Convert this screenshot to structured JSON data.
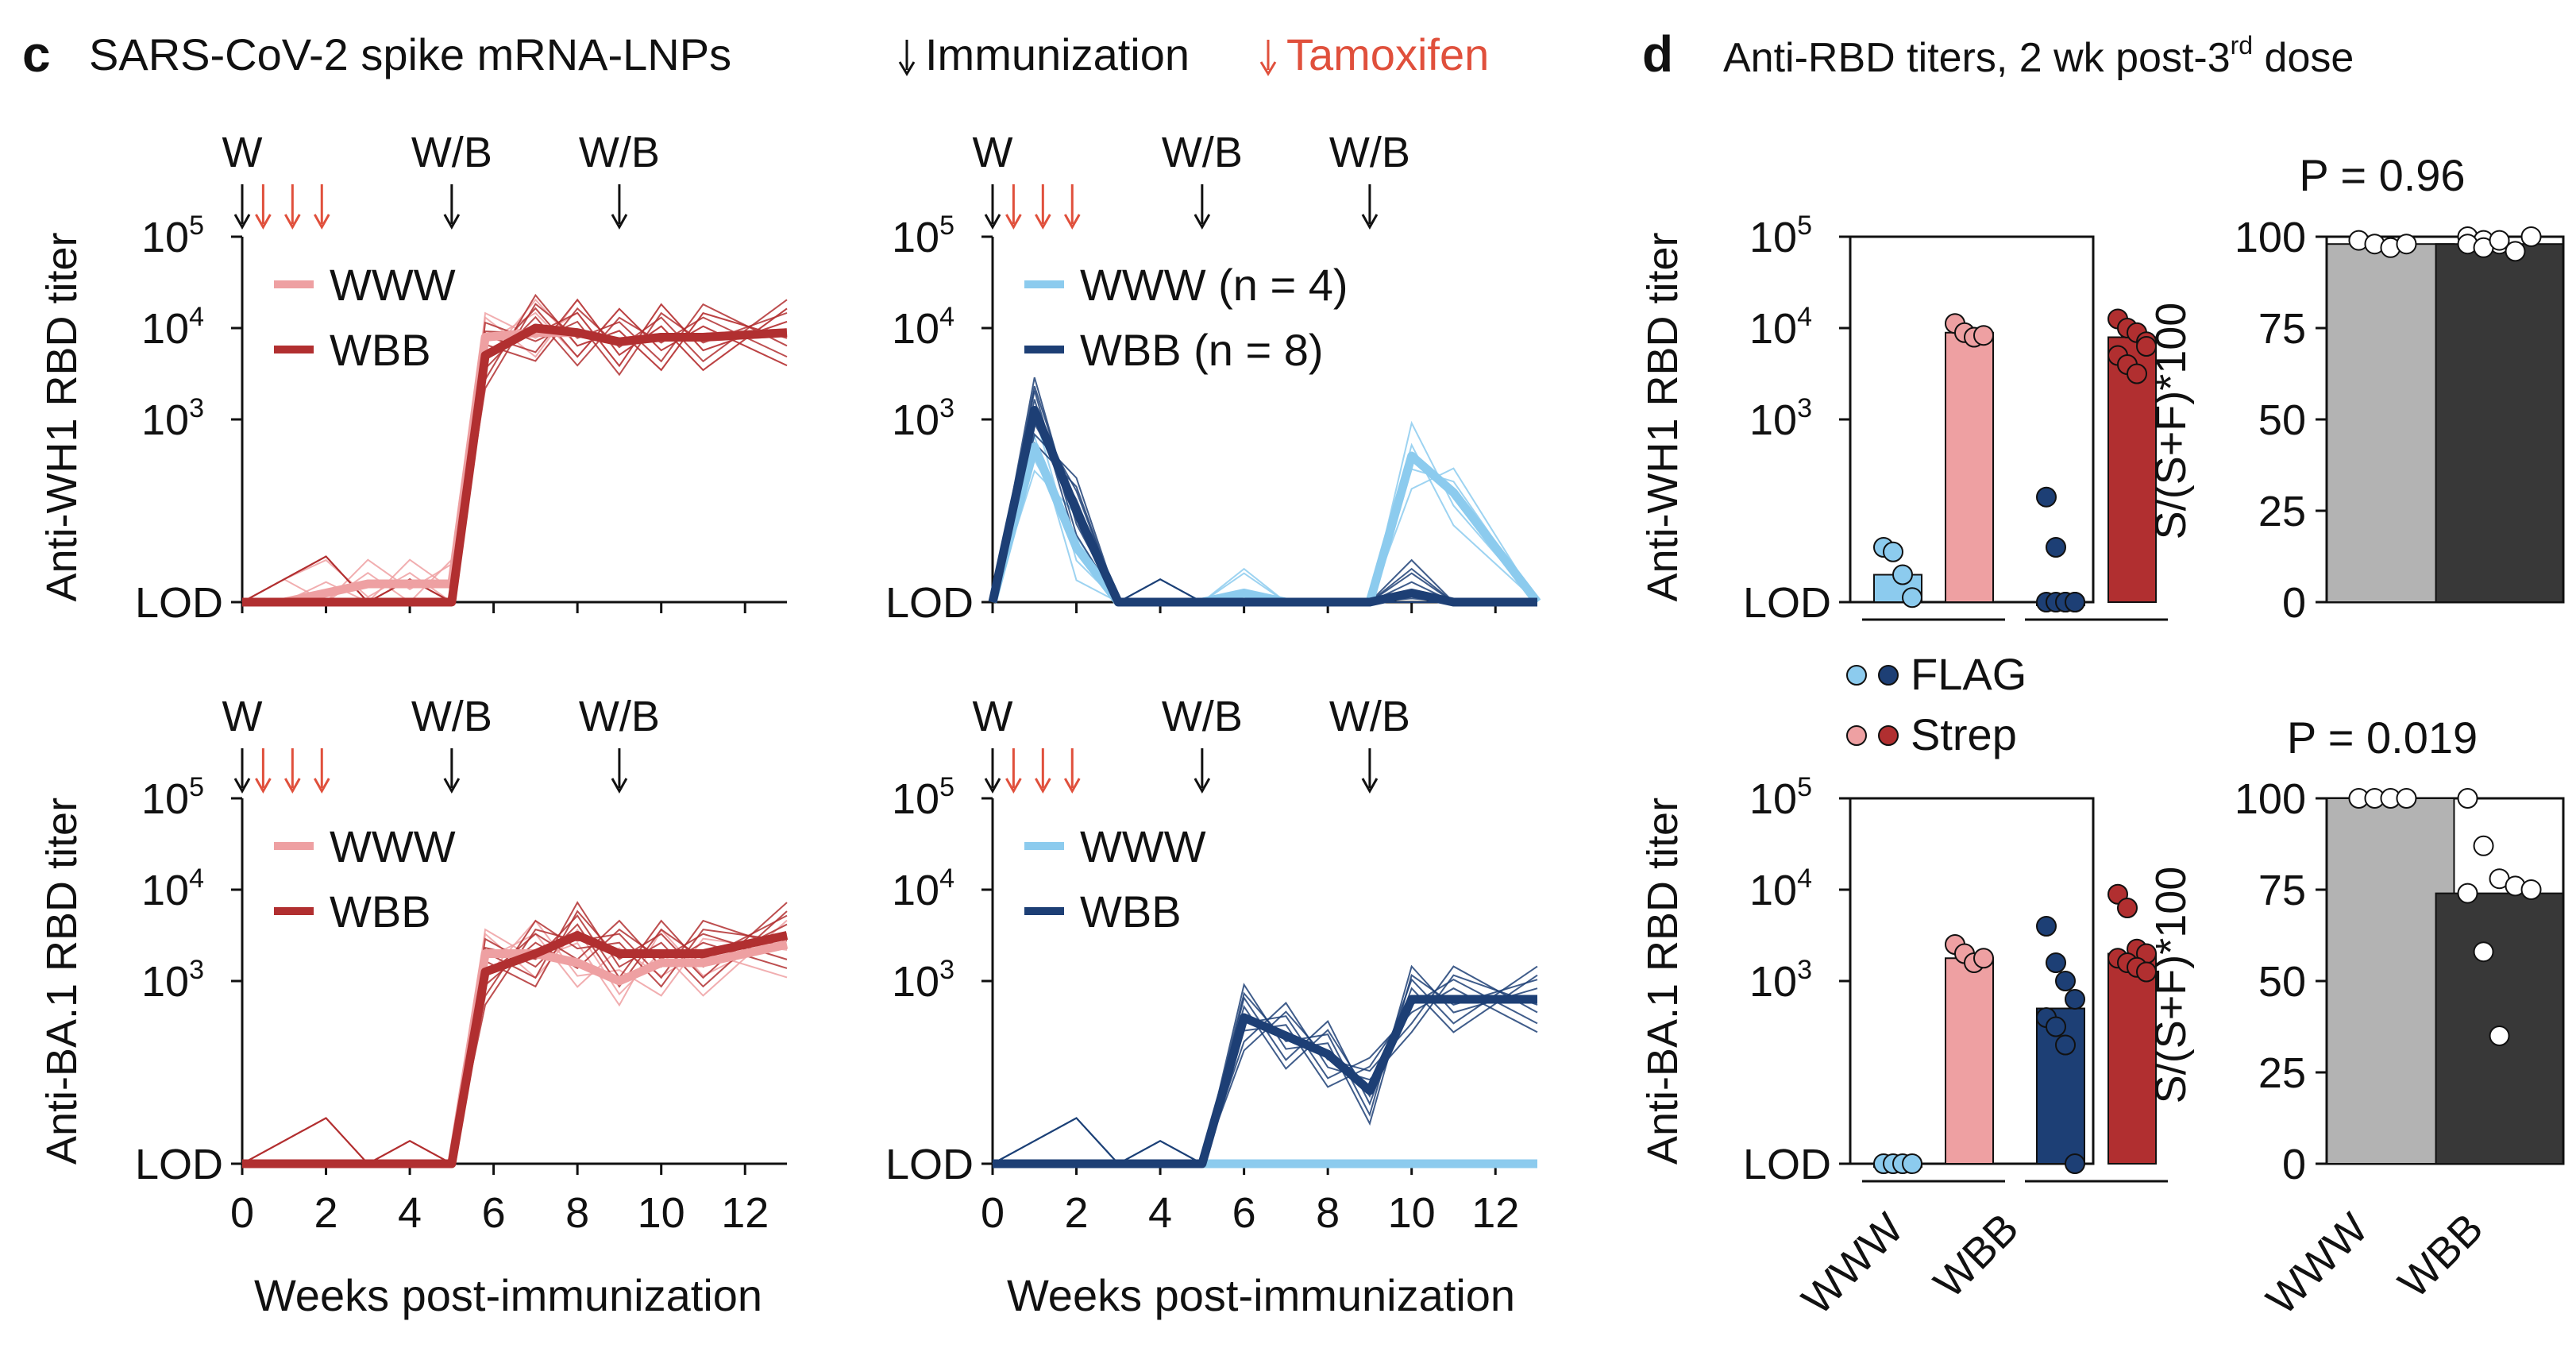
{
  "panel_c": {
    "letter": "c",
    "title": "SARS-CoV-2 spike mRNA-LNPs",
    "immunization_label": "Immunization",
    "tamoxifen_label": "Tamoxifen",
    "xlabel": "Weeks post-immunization",
    "row_ylabels": [
      "Anti-WH1 RBD titer",
      "Anti-BA.1 RBD titer"
    ],
    "event_labels": [
      "W",
      "W/B",
      "W/B"
    ]
  },
  "panel_d": {
    "letter": "d",
    "title_main": "Anti-RBD titers, 2 wk post-3",
    "title_sup": "rd",
    "title_tail": " dose",
    "legend": [
      "FLAG",
      "Strep"
    ],
    "ratio_ylabel": "S/(S+F)*100",
    "pvalues": [
      "P = 0.96",
      "P = 0.019"
    ],
    "groups": [
      "WWW",
      "WBB"
    ]
  },
  "colors": {
    "www_red": "#eea0a2",
    "wbb_red": "#b12f30",
    "www_blue": "#8ccbee",
    "wbb_blue": "#1d3f75",
    "tamoxifen": "#e0503c",
    "grey_bar": "#b3b3b3",
    "dark_bar": "#383838"
  },
  "chart_data": [
    {
      "type": "line",
      "id": "c_wh1_red",
      "ylabel": "Anti-WH1 RBD titer",
      "xlabel": "Weeks post-immunization",
      "yscale": "log",
      "ylim": [
        "LOD",
        100000
      ],
      "y_ticks": [
        "LOD",
        "10^3",
        "10^4",
        "10^5"
      ],
      "x_ticks": [
        0,
        2,
        4,
        6,
        8,
        10,
        12
      ],
      "xlim": [
        0,
        13
      ],
      "immunizations_weeks": [
        0,
        5,
        9
      ],
      "tamoxifen_weeks": [
        0.5,
        1.2,
        1.8
      ],
      "series": [
        {
          "name": "WWW",
          "x": [
            0,
            1,
            2,
            3,
            4,
            5,
            5.8,
            7,
            8,
            9,
            10,
            11,
            13
          ],
          "y": [
            1,
            1,
            1.1,
            1.2,
            1.2,
            1.2,
            3.9,
            3.95,
            3.95,
            3.85,
            3.9,
            3.9,
            3.95
          ]
        },
        {
          "name": "WBB",
          "x": [
            0,
            1,
            2,
            3,
            4,
            5,
            5.8,
            7,
            8,
            9,
            10,
            11,
            13
          ],
          "y": [
            1,
            1,
            1,
            1,
            1,
            1,
            3.7,
            4.0,
            3.95,
            3.85,
            3.9,
            3.9,
            3.95
          ]
        }
      ]
    },
    {
      "type": "line",
      "id": "c_wh1_blue",
      "yscale": "log",
      "ylim": [
        "LOD",
        100000
      ],
      "xlim": [
        0,
        13
      ],
      "series": [
        {
          "name": "WWW (n = 4)",
          "x": [
            0,
            1,
            2,
            3,
            4,
            5,
            6,
            7,
            8,
            9,
            10,
            11,
            13
          ],
          "y": [
            1,
            2.7,
            1.6,
            1,
            1,
            1,
            1.1,
            1,
            1,
            1,
            2.6,
            2.2,
            1
          ]
        },
        {
          "name": "WBB (n = 8)",
          "x": [
            0,
            1,
            2,
            3,
            4,
            5,
            6,
            7,
            8,
            9,
            10,
            11,
            13
          ],
          "y": [
            1,
            3.1,
            2.0,
            1,
            1,
            1,
            1,
            1,
            1,
            1,
            1.1,
            1,
            1
          ]
        }
      ]
    },
    {
      "type": "line",
      "id": "c_ba1_red",
      "ylabel": "Anti-BA.1 RBD titer",
      "yscale": "log",
      "ylim": [
        "LOD",
        100000
      ],
      "xlim": [
        0,
        13
      ],
      "series": [
        {
          "name": "WWW",
          "x": [
            0,
            1,
            2,
            3,
            4,
            5,
            5.8,
            7,
            8,
            9,
            10,
            11,
            13
          ],
          "y": [
            1,
            1,
            1,
            1,
            1,
            1,
            3.3,
            3.3,
            3.2,
            3.0,
            3.2,
            3.2,
            3.4
          ]
        },
        {
          "name": "WBB",
          "x": [
            0,
            1,
            2,
            3,
            4,
            5,
            5.8,
            7,
            8,
            9,
            10,
            11,
            13
          ],
          "y": [
            1,
            1,
            1,
            1,
            1,
            1,
            3.1,
            3.3,
            3.5,
            3.3,
            3.3,
            3.3,
            3.5
          ]
        }
      ]
    },
    {
      "type": "line",
      "id": "c_ba1_blue",
      "yscale": "log",
      "ylim": [
        "LOD",
        100000
      ],
      "xlim": [
        0,
        13
      ],
      "series": [
        {
          "name": "WWW",
          "x": [
            0,
            1,
            2,
            3,
            4,
            5,
            6,
            7,
            8,
            9,
            10,
            11,
            13
          ],
          "y": [
            1,
            1,
            1,
            1,
            1,
            1,
            1,
            1,
            1,
            1,
            1,
            1,
            1
          ]
        },
        {
          "name": "WBB",
          "x": [
            0,
            1,
            2,
            3,
            4,
            5,
            6,
            7,
            8,
            9,
            10,
            11,
            13
          ],
          "y": [
            1,
            1,
            1,
            1,
            1,
            1,
            2.6,
            2.4,
            2.2,
            1.8,
            2.8,
            2.8,
            2.8
          ]
        }
      ]
    },
    {
      "type": "bar",
      "id": "d_wh1_titer",
      "ylabel": "Anti-WH1 RBD titer",
      "yscale": "log",
      "ylim": [
        "LOD",
        100000
      ],
      "categories": [
        "WWW FLAG",
        "WWW Strep",
        "WBB FLAG",
        "WBB Strep"
      ],
      "values": [
        1.3,
        3.95,
        1,
        3.9
      ],
      "points": [
        [
          1.6,
          1.55,
          1.3,
          1.05
        ],
        [
          4.05,
          3.95,
          3.9,
          3.92
        ],
        [
          2.15,
          1.6,
          1,
          1,
          1,
          1,
          1,
          1
        ],
        [
          4.1,
          4.0,
          3.95,
          3.85,
          3.7,
          3.6,
          3.5,
          3.8
        ]
      ]
    },
    {
      "type": "bar",
      "id": "d_wh1_ratio",
      "ylabel": "S/(S+F)*100",
      "ylim": [
        0,
        100
      ],
      "y_ticks": [
        0,
        25,
        50,
        75,
        100
      ],
      "categories": [
        "WWW",
        "WBB"
      ],
      "values": [
        98,
        98
      ],
      "points": [
        [
          99,
          98,
          97,
          98
        ],
        [
          100,
          99,
          98,
          96,
          100,
          98,
          97,
          99
        ]
      ],
      "pvalue": "P = 0.96"
    },
    {
      "type": "bar",
      "id": "d_ba1_titer",
      "ylabel": "Anti-BA.1 RBD titer",
      "yscale": "log",
      "ylim": [
        "LOD",
        100000
      ],
      "categories": [
        "WWW FLAG",
        "WWW Strep",
        "WBB FLAG",
        "WBB Strep"
      ],
      "values": [
        1,
        3.25,
        2.7,
        3.3
      ],
      "points": [
        [
          1,
          1,
          1,
          1
        ],
        [
          3.4,
          3.3,
          3.2,
          3.25
        ],
        [
          3.6,
          3.2,
          3.0,
          2.8,
          2.6,
          2.5,
          2.3,
          1
        ],
        [
          3.95,
          3.8,
          3.35,
          3.3,
          3.25,
          3.2,
          3.15,
          3.1
        ]
      ]
    },
    {
      "type": "bar",
      "id": "d_ba1_ratio",
      "ylabel": "S/(S+F)*100",
      "ylim": [
        0,
        100
      ],
      "y_ticks": [
        0,
        25,
        50,
        75,
        100
      ],
      "categories": [
        "WWW",
        "WBB"
      ],
      "values": [
        100,
        74
      ],
      "points": [
        [
          100,
          100,
          100,
          100
        ],
        [
          100,
          87,
          78,
          76,
          75,
          74,
          58,
          35
        ]
      ],
      "pvalue": "P = 0.019"
    }
  ]
}
